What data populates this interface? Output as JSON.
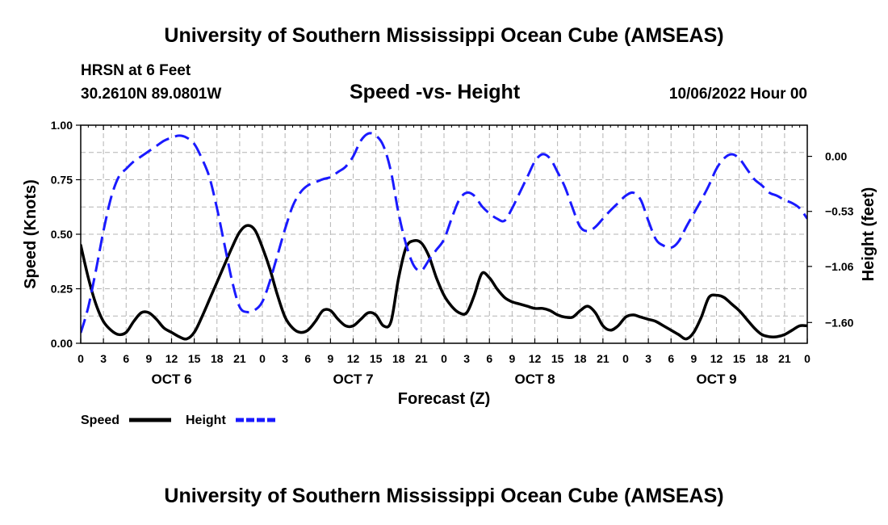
{
  "header": {
    "title": "University of Southern Mississippi Ocean Cube (AMSEAS)",
    "station": "HRSN at 6 Feet",
    "coords": "30.2610N  89.0801W",
    "datetime": "10/06/2022 Hour 00",
    "footer_title": "University of Southern Mississippi Ocean Cube (AMSEAS)"
  },
  "chart_data": {
    "type": "line",
    "title": "Speed -vs- Height",
    "xlabel": "Forecast (Z)",
    "ylabel": "Speed (Knots)",
    "y2label": "Height (feet)",
    "x_range": [
      0,
      96
    ],
    "ylim": [
      0,
      1
    ],
    "y2lim": [
      -1.8,
      0.3
    ],
    "y_ticks": [
      0,
      0.25,
      0.5,
      0.75,
      1.0
    ],
    "y_tick_labels": [
      "0.00",
      "0.25",
      "0.50",
      "0.75",
      "1.00"
    ],
    "y2_ticks": [
      0.0,
      -0.53,
      -1.06,
      -1.6
    ],
    "y2_tick_labels": [
      "0.00",
      "−0.53",
      "−1.06",
      "−1.60"
    ],
    "x_ticks": [
      0,
      3,
      6,
      9,
      12,
      15,
      18,
      21,
      24,
      27,
      30,
      33,
      36,
      39,
      42,
      45,
      48,
      51,
      54,
      57,
      60,
      63,
      66,
      69,
      72,
      75,
      78,
      81,
      84,
      87,
      90,
      93,
      96
    ],
    "x_tick_labels": [
      "0",
      "3",
      "6",
      "9",
      "12",
      "15",
      "18",
      "21",
      "0",
      "3",
      "6",
      "9",
      "12",
      "15",
      "18",
      "21",
      "0",
      "3",
      "6",
      "9",
      "12",
      "15",
      "18",
      "21",
      "0",
      "3",
      "6",
      "9",
      "12",
      "15",
      "18",
      "21",
      "0"
    ],
    "day_labels": [
      {
        "x": 12,
        "label": "OCT 6"
      },
      {
        "x": 36,
        "label": "OCT 7"
      },
      {
        "x": 60,
        "label": "OCT 8"
      },
      {
        "x": 84,
        "label": "OCT 9"
      }
    ],
    "grid": true,
    "legend_position": "bottom-left",
    "series": [
      {
        "name": "Speed",
        "axis": "left",
        "color": "#000000",
        "style": "solid",
        "x": [
          0,
          1,
          2,
          3,
          4,
          5,
          6,
          7,
          8,
          9,
          10,
          11,
          12,
          13,
          14,
          15,
          16,
          17,
          18,
          19,
          20,
          21,
          22,
          23,
          24,
          25,
          26,
          27,
          28,
          29,
          30,
          31,
          32,
          33,
          34,
          35,
          36,
          37,
          38,
          39,
          40,
          41,
          42,
          43,
          44,
          45,
          46,
          47,
          48,
          49,
          50,
          51,
          52,
          53,
          54,
          55,
          56,
          57,
          58,
          59,
          60,
          61,
          62,
          63,
          64,
          65,
          66,
          67,
          68,
          69,
          70,
          71,
          72,
          73,
          74,
          75,
          76,
          77,
          78,
          79,
          80,
          81,
          82,
          83,
          84,
          85,
          86,
          87,
          88,
          89,
          90,
          91,
          92,
          93,
          94,
          95,
          96
        ],
        "values": [
          0.45,
          0.3,
          0.18,
          0.1,
          0.06,
          0.04,
          0.05,
          0.1,
          0.14,
          0.14,
          0.11,
          0.07,
          0.05,
          0.03,
          0.02,
          0.05,
          0.12,
          0.2,
          0.28,
          0.36,
          0.44,
          0.51,
          0.54,
          0.52,
          0.44,
          0.34,
          0.22,
          0.12,
          0.07,
          0.05,
          0.06,
          0.1,
          0.15,
          0.15,
          0.11,
          0.08,
          0.08,
          0.11,
          0.14,
          0.13,
          0.08,
          0.1,
          0.3,
          0.44,
          0.47,
          0.46,
          0.4,
          0.3,
          0.22,
          0.17,
          0.14,
          0.14,
          0.22,
          0.32,
          0.3,
          0.25,
          0.21,
          0.19,
          0.18,
          0.17,
          0.16,
          0.16,
          0.15,
          0.13,
          0.12,
          0.12,
          0.15,
          0.17,
          0.14,
          0.08,
          0.06,
          0.08,
          0.12,
          0.13,
          0.12,
          0.11,
          0.1,
          0.08,
          0.06,
          0.04,
          0.02,
          0.05,
          0.12,
          0.21,
          0.22,
          0.21,
          0.18,
          0.15,
          0.11,
          0.07,
          0.04,
          0.03,
          0.03,
          0.04,
          0.06,
          0.08,
          0.08
        ]
      },
      {
        "name": "Height",
        "axis": "right",
        "color": "#1a1aff",
        "style": "dashed",
        "x": [
          0,
          1,
          2,
          3,
          4,
          5,
          6,
          7,
          8,
          9,
          10,
          11,
          12,
          13,
          14,
          15,
          16,
          17,
          18,
          19,
          20,
          21,
          22,
          23,
          24,
          25,
          26,
          27,
          28,
          29,
          30,
          31,
          32,
          33,
          34,
          35,
          36,
          37,
          38,
          39,
          40,
          41,
          42,
          43,
          44,
          45,
          46,
          47,
          48,
          49,
          50,
          51,
          52,
          53,
          54,
          55,
          56,
          57,
          58,
          59,
          60,
          61,
          62,
          63,
          64,
          65,
          66,
          67,
          68,
          69,
          70,
          71,
          72,
          73,
          74,
          75,
          76,
          77,
          78,
          79,
          80,
          81,
          82,
          83,
          84,
          85,
          86,
          87,
          88,
          89,
          90,
          91,
          92,
          93,
          94,
          95,
          96
        ],
        "values": [
          -1.7,
          -1.45,
          -1.1,
          -0.72,
          -0.4,
          -0.2,
          -0.12,
          -0.05,
          0,
          0.05,
          0.1,
          0.15,
          0.18,
          0.2,
          0.18,
          0.12,
          -0.02,
          -0.2,
          -0.5,
          -0.85,
          -1.2,
          -1.45,
          -1.5,
          -1.48,
          -1.4,
          -1.2,
          -0.95,
          -0.7,
          -0.48,
          -0.35,
          -0.28,
          -0.25,
          -0.22,
          -0.2,
          -0.15,
          -0.1,
          0,
          0.15,
          0.22,
          0.2,
          0.1,
          -0.15,
          -0.55,
          -0.85,
          -1.05,
          -1.1,
          -1.0,
          -0.9,
          -0.8,
          -0.6,
          -0.42,
          -0.35,
          -0.38,
          -0.48,
          -0.55,
          -0.6,
          -0.62,
          -0.5,
          -0.35,
          -0.2,
          -0.05,
          0.02,
          -0.02,
          -0.15,
          -0.3,
          -0.5,
          -0.68,
          -0.72,
          -0.68,
          -0.6,
          -0.52,
          -0.45,
          -0.38,
          -0.35,
          -0.42,
          -0.62,
          -0.8,
          -0.86,
          -0.88,
          -0.82,
          -0.68,
          -0.55,
          -0.42,
          -0.28,
          -0.12,
          -0.02,
          0.02,
          -0.02,
          -0.12,
          -0.22,
          -0.28,
          -0.35,
          -0.38,
          -0.42,
          -0.45,
          -0.5,
          -0.6
        ]
      }
    ]
  }
}
